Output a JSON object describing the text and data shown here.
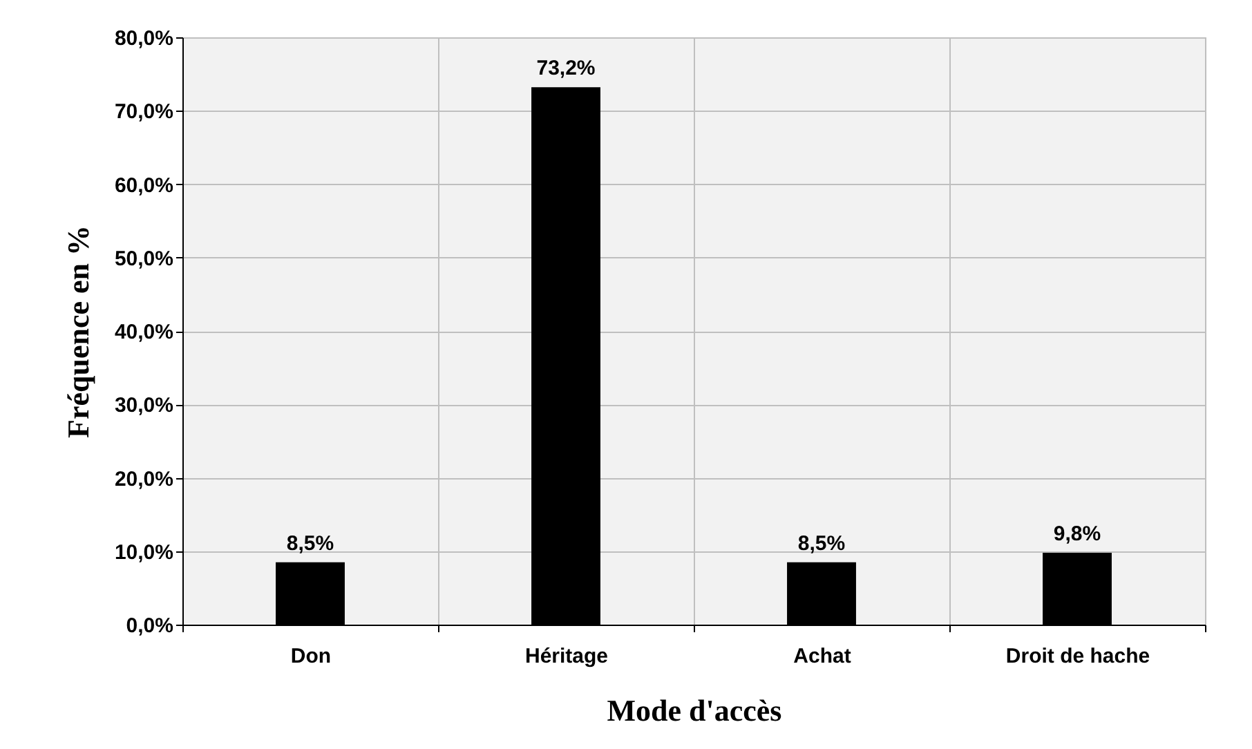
{
  "chart_data": {
    "type": "bar",
    "xlabel": "Mode d'accès",
    "ylabel": "Fréquence en %",
    "categories": [
      "Don",
      "Héritage",
      "Achat",
      "Droit de hache"
    ],
    "values": [
      8.5,
      73.2,
      8.5,
      9.8
    ],
    "value_labels": [
      "8,5%",
      "73,2%",
      "8,5%",
      "9,8%"
    ],
    "color": "#000000",
    "ylim": [
      0,
      80
    ],
    "yticks": [
      {
        "value": 0,
        "label": "0,0%"
      },
      {
        "value": 10,
        "label": "10,0%"
      },
      {
        "value": 20,
        "label": "20,0%"
      },
      {
        "value": 30,
        "label": "30,0%"
      },
      {
        "value": 40,
        "label": "40,0%"
      },
      {
        "value": 50,
        "label": "50,0%"
      },
      {
        "value": 60,
        "label": "60,0%"
      },
      {
        "value": 70,
        "label": "70,0%"
      },
      {
        "value": 80,
        "label": "80,0%"
      }
    ],
    "grid": true
  }
}
